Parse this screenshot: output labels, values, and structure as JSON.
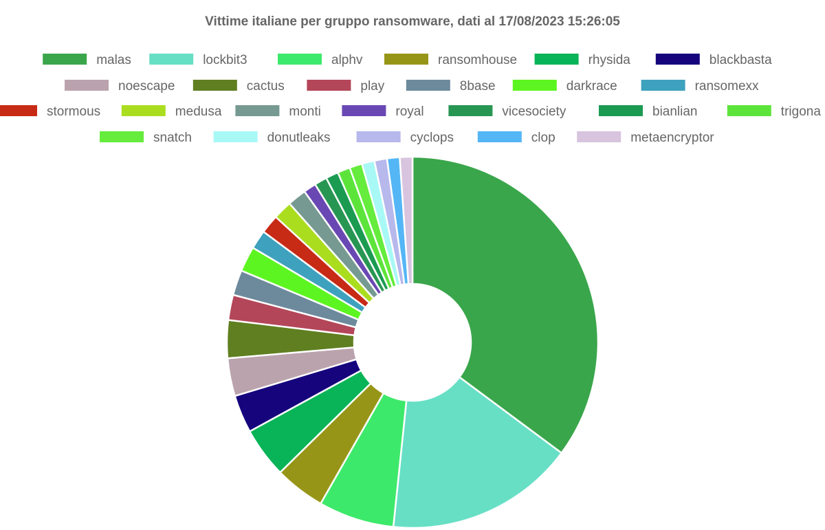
{
  "chart_data": {
    "type": "pie",
    "subtype": "doughnut",
    "title": "Vittime italiane per gruppo ransomware, dati al 17/08/2023 15:26:05",
    "legend_position": "top",
    "categories": [
      "malas",
      "lockbit3",
      "alphv",
      "ransomhouse",
      "rhysida",
      "blackbasta",
      "noescape",
      "cactus",
      "play",
      "8base",
      "darkrace",
      "ransomexx",
      "stormous",
      "medusa",
      "monti",
      "royal",
      "vicesociety",
      "bianlian",
      "trigona",
      "snatch",
      "donutleaks",
      "cyclops",
      "clop",
      "metaencryptor"
    ],
    "values": [
      32,
      15,
      6,
      4,
      4,
      3,
      3,
      3,
      2,
      2,
      2,
      1.5,
      1.5,
      1.5,
      1.5,
      1,
      1,
      1,
      1,
      1,
      1,
      1,
      1,
      1
    ],
    "colors": [
      "#3aa64b",
      "#67dfc5",
      "#3de96a",
      "#979517",
      "#08b457",
      "#15047c",
      "#bba3ae",
      "#607f21",
      "#b44659",
      "#6d8a9c",
      "#5df521",
      "#3ea1bd",
      "#c72a15",
      "#abdd1f",
      "#769a91",
      "#6a48b4",
      "#289653",
      "#1b9b52",
      "#5de43b",
      "#65ec3c",
      "#a8f8f6",
      "#b7b8ec",
      "#55b6f6",
      "#d8c4de"
    ]
  }
}
